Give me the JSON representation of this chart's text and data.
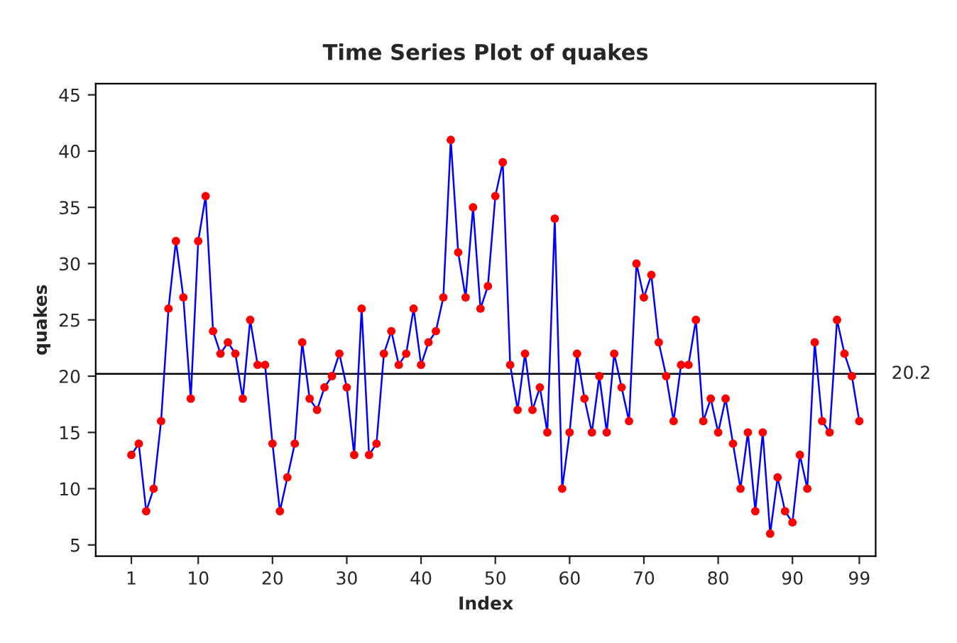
{
  "chart_data": {
    "type": "line",
    "title": "Time Series Plot of quakes",
    "xlabel": "Index",
    "ylabel": "quakes",
    "x": [
      1,
      2,
      3,
      4,
      5,
      6,
      7,
      8,
      9,
      10,
      11,
      12,
      13,
      14,
      15,
      16,
      17,
      18,
      19,
      20,
      21,
      22,
      23,
      24,
      25,
      26,
      27,
      28,
      29,
      30,
      31,
      32,
      33,
      34,
      35,
      36,
      37,
      38,
      39,
      40,
      41,
      42,
      43,
      44,
      45,
      46,
      47,
      48,
      49,
      50,
      51,
      52,
      53,
      54,
      55,
      56,
      57,
      58,
      59,
      60,
      61,
      62,
      63,
      64,
      65,
      66,
      67,
      68,
      69,
      70,
      71,
      72,
      73,
      74,
      75,
      76,
      77,
      78,
      79,
      80,
      81,
      82,
      83,
      84,
      85,
      86,
      87,
      88,
      89,
      90,
      91,
      92,
      93,
      94,
      95,
      96,
      97,
      98,
      99
    ],
    "series": [
      {
        "color": "#0000ff",
        "colors": [
          "#ff0000",
          "#ff0000",
          "#ff0000",
          "#ff0000",
          "#ff0000",
          "#ff0000",
          "#ff0000",
          "#ff0000",
          "#ff0000",
          "#ff0000",
          "#ff0000",
          "#ff0000",
          "#ff0000",
          "#ff0000",
          "#ff0000",
          "#ff0000",
          "#ff0000",
          "#ff0000",
          "#ff0000",
          "#ff0000",
          "#ff0000",
          "#ff0000",
          "#ff0000",
          "#ff0000",
          "#ff0000",
          "#ff0000",
          "#ff0000",
          "#ff0000",
          "#ff0000",
          "#ff0000",
          "#ff0000",
          "#ff0000",
          "#ff0000",
          "#ff0000",
          "#ff0000",
          "#ff0000",
          "#ff0000",
          "#ff0000",
          "#ff0000",
          "#ff0000",
          "#ff0000",
          "#ff0000",
          "#ff0000",
          "#ff0000",
          "#ff0000",
          "#ff0000",
          "#ff0000",
          "#ff0000",
          "#ff0000",
          "#ff0000",
          "#ff0000",
          "#ff0000",
          "#ff0000",
          "#ff0000",
          "#ff0000",
          "#ff0000",
          "#ff0000",
          "#ff0000",
          "#ff0000",
          "#ff0000",
          "#ff0000",
          "#ff0000",
          "#ff0000",
          "#ff0000",
          "#ff0000",
          "#ff0000",
          "#ff0000",
          "#ff0000",
          "#ff0000",
          "#ff0000",
          "#ff0000",
          "#ff0000",
          "#ff0000",
          "#ff0000",
          "#ff0000",
          "#ff0000",
          "#ff0000",
          "#ff0000",
          "#ff0000",
          "#ff0000",
          "#ff0000",
          "#ff0000",
          "#ff0000",
          "#ff0000",
          "#ff0000",
          "#ff0000",
          "#ff0000",
          "#ff0000",
          "#ff0000",
          "#ff0000",
          "#ff0000",
          "#ff0000",
          "#ff0000",
          "#ff0000",
          "#ff0000",
          "#ff0000",
          "#ff0000",
          "#ff0000",
          "#ff0000"
        ],
        "values": [
          13,
          14,
          8,
          10,
          16,
          26,
          32,
          27,
          18,
          32,
          36,
          24,
          22,
          23,
          22,
          18,
          25,
          21,
          21,
          14,
          8,
          11,
          14,
          23,
          18,
          17,
          19,
          20,
          22,
          19,
          13,
          26,
          13,
          14,
          22,
          24,
          21,
          22,
          26,
          21,
          23,
          24,
          27,
          41,
          31,
          27,
          35,
          26,
          28,
          36,
          39,
          21,
          17,
          22,
          17,
          19,
          15,
          34,
          10,
          15,
          22,
          18,
          15,
          20,
          15,
          22,
          19,
          16,
          30,
          27,
          29,
          23,
          20,
          16,
          21,
          21,
          25,
          16,
          18,
          15,
          18,
          14,
          10,
          15,
          8,
          15,
          6,
          11,
          8,
          7,
          13,
          10,
          23,
          16,
          15,
          25,
          22,
          20,
          16
        ]
      }
    ],
    "xlim": [
      -3.8,
      101.2
    ],
    "xticks": [
      1,
      10,
      20,
      30,
      40,
      50,
      60,
      70,
      80,
      90,
      99
    ],
    "ylim": [
      4,
      46
    ],
    "yticks": [
      5,
      10,
      15,
      20,
      25,
      30,
      35,
      40,
      45
    ],
    "ref_lines": [
      {
        "axis": "y",
        "value": 20.2,
        "label": "20.2",
        "color": "#000000"
      }
    ],
    "marker": "circle",
    "line_style": "solid",
    "grid": false
  }
}
